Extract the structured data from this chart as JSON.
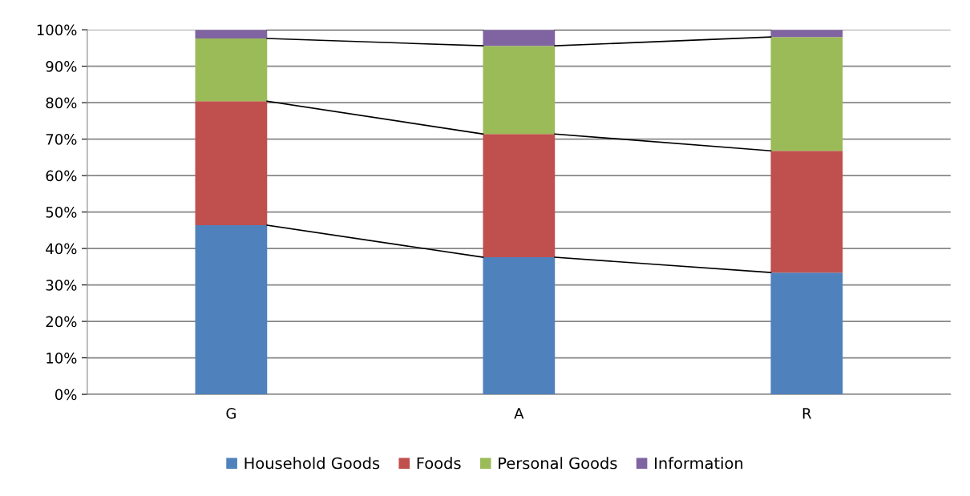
{
  "chart_data": {
    "type": "bar",
    "stacked": true,
    "categories": [
      "G",
      "A",
      "R"
    ],
    "series": [
      {
        "name": "Household Goods",
        "color": "#4f81bd",
        "values": [
          46.4,
          37.6,
          33.4
        ]
      },
      {
        "name": "Foods",
        "color": "#c0504d",
        "values": [
          34.0,
          33.8,
          33.4
        ]
      },
      {
        "name": "Personal Goods",
        "color": "#9bbb59",
        "values": [
          17.2,
          24.2,
          31.2
        ]
      },
      {
        "name": "Information",
        "color": "#8064a2",
        "values": [
          2.4,
          4.4,
          2.0
        ]
      }
    ],
    "ylim": [
      0,
      100
    ],
    "yticks": [
      {
        "value": 0,
        "label": "0%"
      },
      {
        "value": 10,
        "label": "10%"
      },
      {
        "value": 20,
        "label": "20%"
      },
      {
        "value": 30,
        "label": "30%"
      },
      {
        "value": 40,
        "label": "40%"
      },
      {
        "value": 50,
        "label": "50%"
      },
      {
        "value": 60,
        "label": "60%"
      },
      {
        "value": 70,
        "label": "70%"
      },
      {
        "value": 80,
        "label": "80%"
      },
      {
        "value": 90,
        "label": "90%"
      },
      {
        "value": 100,
        "label": "100%"
      }
    ],
    "grid": "y",
    "legend": "bottom"
  }
}
